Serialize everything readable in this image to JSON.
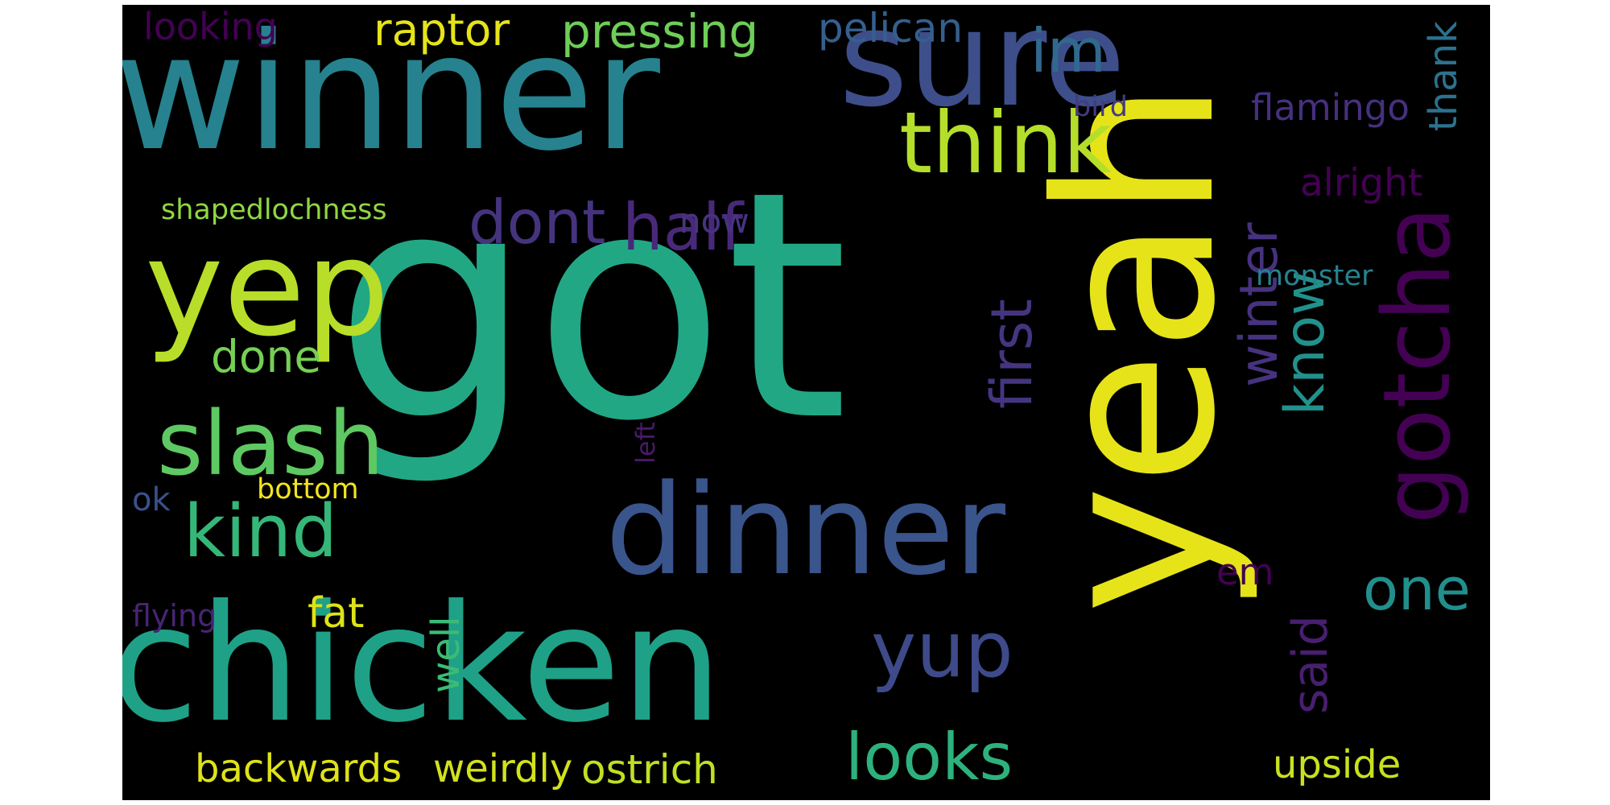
{
  "background": "#000000",
  "words": [
    {
      "text": "got",
      "color": "#22a785",
      "vertical": false
    },
    {
      "text": "winner",
      "color": "#26828e",
      "vertical": false
    },
    {
      "text": "yeah",
      "color": "#e6e419",
      "vertical": true
    },
    {
      "text": "chicken",
      "color": "#1fa187",
      "vertical": false
    },
    {
      "text": "dinner",
      "color": "#3a548c",
      "vertical": false
    },
    {
      "text": "sure",
      "color": "#3d4e8a",
      "vertical": false
    },
    {
      "text": "think",
      "color": "#b5de2b",
      "vertical": false
    },
    {
      "text": "yep",
      "color": "#b8de29",
      "vertical": false
    },
    {
      "text": "slash",
      "color": "#5ec962",
      "vertical": false
    },
    {
      "text": "gotcha",
      "color": "#440154",
      "vertical": true
    },
    {
      "text": "kind",
      "color": "#35b779",
      "vertical": false
    },
    {
      "text": "yup",
      "color": "#3e4a89",
      "vertical": false
    },
    {
      "text": "dont",
      "color": "#46337e",
      "vertical": false
    },
    {
      "text": "half",
      "color": "#482979",
      "vertical": false
    },
    {
      "text": "looks",
      "color": "#2db27d",
      "vertical": false
    },
    {
      "text": "first",
      "color": "#453581",
      "vertical": true
    },
    {
      "text": "winter",
      "color": "#46327e",
      "vertical": true
    },
    {
      "text": "know",
      "color": "#21918c",
      "vertical": true
    },
    {
      "text": "one",
      "color": "#21908d",
      "vertical": false
    },
    {
      "text": "said",
      "color": "#481f70",
      "vertical": true
    },
    {
      "text": "im",
      "color": "#31688e",
      "vertical": false
    },
    {
      "text": "raptor",
      "color": "#e5e419",
      "vertical": false
    },
    {
      "text": "pressing",
      "color": "#6ece58",
      "vertical": false
    },
    {
      "text": "pelican",
      "color": "#355f8d",
      "vertical": false
    },
    {
      "text": "looking",
      "color": "#440154",
      "vertical": false
    },
    {
      "text": "done",
      "color": "#75d054",
      "vertical": false
    },
    {
      "text": "fat",
      "color": "#dde318",
      "vertical": false
    },
    {
      "text": "well",
      "color": "#3bbb75",
      "vertical": true
    },
    {
      "text": "backwards",
      "color": "#dfe318",
      "vertical": false
    },
    {
      "text": "weirdly",
      "color": "#d2e21b",
      "vertical": false
    },
    {
      "text": "ostrich",
      "color": "#c2df23",
      "vertical": false
    },
    {
      "text": "upside",
      "color": "#c8e020",
      "vertical": false
    },
    {
      "text": "flamingo",
      "color": "#46307e",
      "vertical": false
    },
    {
      "text": "bird",
      "color": "#443a83",
      "vertical": false
    },
    {
      "text": "thank",
      "color": "#2c728e",
      "vertical": true
    },
    {
      "text": "alright",
      "color": "#440154",
      "vertical": false
    },
    {
      "text": "now",
      "color": "#463480",
      "vertical": false
    },
    {
      "text": "shapedlochness",
      "color": "#90d743",
      "vertical": false
    },
    {
      "text": "monster",
      "color": "#25838e",
      "vertical": false
    },
    {
      "text": "bottom",
      "color": "#f1e51d",
      "vertical": false
    },
    {
      "text": "ok",
      "color": "#3b518b",
      "vertical": false
    },
    {
      "text": "left",
      "color": "#481a6c",
      "vertical": true
    },
    {
      "text": "em",
      "color": "#440154",
      "vertical": false
    },
    {
      "text": "flying",
      "color": "#482475",
      "vertical": false
    }
  ]
}
